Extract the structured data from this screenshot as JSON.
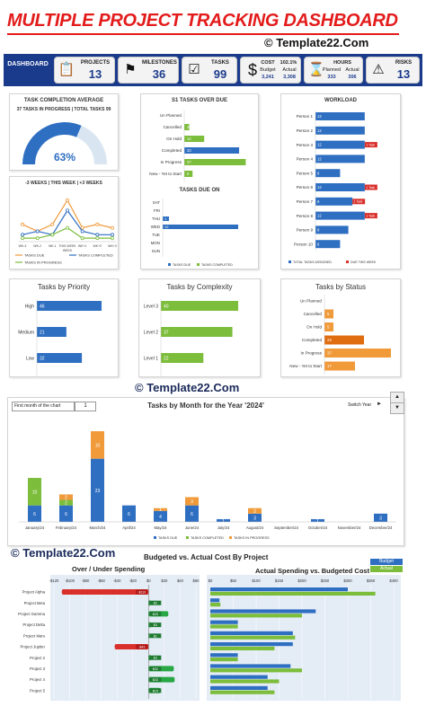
{
  "header": {
    "title": "MULTIPLE PROJECT TRACKING DASHBOARD",
    "copyright": "© Template22.Com"
  },
  "kpi": {
    "logo_small": "",
    "logo_label": "DASHBOARD",
    "projects": {
      "label": "PROJECTS",
      "value": "13"
    },
    "milestones": {
      "label": "MILESTONES",
      "value": "36"
    },
    "tasks": {
      "label": "TASKS",
      "value": "99"
    },
    "cost": {
      "label": "COST",
      "percent": "102.1%",
      "budget_label": "Budget",
      "actual_label": "Actual",
      "budget": "3,241",
      "actual": "3,308"
    },
    "hours": {
      "label": "HOURS",
      "planned_label": "Planned",
      "actual_label": "Actual",
      "planned": "333",
      "actual": "306"
    },
    "risks": {
      "label": "RISKS",
      "value": "13"
    }
  },
  "copyright_mid": "© Template22.Com",
  "copyright_low": "© Template22.Com",
  "colors": {
    "blue": "#2f6fc2",
    "green": "#7cbd3b",
    "orange": "#f09a3a",
    "red": "#d9302c",
    "navy": "#1a3a8c"
  },
  "chart_data": [
    {
      "id": "completion",
      "type": "gauge",
      "title": "TASK COMPLETION AVERAGE",
      "subtitle": "37 TASKS IN PROGRESS | TOTAL TASKS 99",
      "value_label": "63%",
      "value": 0.63
    },
    {
      "id": "weeks",
      "type": "line",
      "title": "-3 WEEKS | THIS WEEK | +3 WEEKS",
      "categories": [
        "WK-3",
        "WK-2",
        "WK-1",
        "THIS WEEK",
        "WK+1",
        "WK+2",
        "WK+3"
      ],
      "xlabel_center": "WEEK",
      "series": [
        {
          "name": "TASKS DUE",
          "values": [
            5,
            3,
            5,
            12,
            4,
            5,
            4
          ]
        },
        {
          "name": "TASKS COMPLETED",
          "values": [
            2,
            3,
            2,
            9,
            3,
            2,
            2
          ]
        },
        {
          "name": "TASKS IN PROGRESS",
          "values": [
            1,
            1,
            2,
            4,
            1,
            1,
            1
          ]
        }
      ]
    },
    {
      "id": "status_overdue",
      "type": "bar",
      "title": "S1 TASKS OVER DUE",
      "categories": [
        "Un Planned",
        "Cancelled",
        "On Hold",
        "Completed",
        "In Progress",
        "New - Yet to Start"
      ],
      "series": [
        {
          "name": "Tasks",
          "values": [
            0,
            3,
            12,
            33,
            37,
            5
          ]
        }
      ]
    },
    {
      "id": "due_on",
      "type": "bar",
      "title": "TASKS DUE ON",
      "categories": [
        "SAT",
        "FRI",
        "THU",
        "WED",
        "TUE",
        "MON",
        "SUN"
      ],
      "series": [
        {
          "name": "TASKS DUE",
          "values": [
            0,
            0,
            1,
            12,
            0,
            0,
            0
          ]
        },
        {
          "name": "TASKS COMPLETED",
          "values": [
            0,
            0,
            0,
            0,
            0,
            0,
            0
          ]
        }
      ]
    },
    {
      "id": "workload",
      "type": "bar",
      "title": "WORKLOAD",
      "categories": [
        "Person 1",
        "Person 2",
        "Person 3",
        "Person 4",
        "Person 5",
        "Person 6",
        "Person 7",
        "Person 8",
        "Person 9",
        "Person 10"
      ],
      "series": [
        {
          "name": "TOTAL TASKS ASSIGNED",
          "values": [
            12,
            12,
            12,
            12,
            6,
            12,
            9,
            12,
            8,
            6
          ]
        },
        {
          "name": "DUE THIS WEEK",
          "values": [
            0,
            0,
            1,
            0,
            0,
            1,
            1,
            1,
            0,
            0
          ]
        }
      ],
      "bar_labels": [
        [
          "12",
          ""
        ],
        [
          "12",
          ""
        ],
        [
          "12",
          "1 Task"
        ],
        [
          "12",
          ""
        ],
        [
          "6",
          ""
        ],
        [
          "12",
          "1 Task"
        ],
        [
          "9",
          "1 Task"
        ],
        [
          "12",
          "1 Task"
        ],
        [
          "8",
          ""
        ],
        [
          "6",
          ""
        ]
      ]
    },
    {
      "id": "priority",
      "type": "bar",
      "title": "Tasks by Priority",
      "categories": [
        "High",
        "Medium",
        "Low"
      ],
      "values": [
        46,
        21,
        32
      ]
    },
    {
      "id": "complexity",
      "type": "bar",
      "title": "Tasks by Complexity",
      "categories": [
        "Level 3",
        "Level 2",
        "Level 1"
      ],
      "values": [
        40,
        37,
        22
      ]
    },
    {
      "id": "status",
      "type": "bar",
      "title": "Tasks by Status",
      "categories": [
        "Un Planned",
        "Cancelled",
        "On Hold",
        "Completed",
        "In Progress",
        "New - Yet to Start"
      ],
      "values": [
        0,
        5,
        5,
        22,
        37,
        17
      ]
    },
    {
      "id": "monthly",
      "type": "bar",
      "title": "Tasks by Month for the Year '2024'",
      "first_month_label": "First month of the chart",
      "first_month_value": "1",
      "switch_label": "Switch Year",
      "categories": [
        "January/24",
        "February/24",
        "March/24",
        "April/24",
        "May/24",
        "June/24",
        "July/24",
        "August/24",
        "September/24",
        "October/24",
        "November/24",
        "December/24"
      ],
      "series": [
        {
          "name": "TASKS DUE",
          "values": [
            6,
            6,
            23,
            6,
            4,
            6,
            1,
            3,
            0,
            1,
            0,
            3
          ]
        },
        {
          "name": "TASKS COMPLETED",
          "values": [
            10,
            2,
            0,
            0,
            0,
            0,
            0,
            0,
            0,
            0,
            0,
            0
          ]
        },
        {
          "name": "TASKS IN PROGRESS",
          "values": [
            0,
            2,
            10,
            0,
            1,
            3,
            0,
            2,
            0,
            0,
            0,
            0
          ]
        }
      ]
    },
    {
      "id": "spending",
      "type": "bar",
      "title": "Over / Under Spending",
      "suptitle": "Budgeted vs. Actual Cost By Project",
      "xticks": [
        "-$120",
        "-$100",
        "-$80",
        "-$60",
        "-$40",
        "-$20",
        "$0",
        "$20",
        "$40",
        "$60"
      ],
      "categories": [
        "Project Alpha",
        "Project Beta",
        "Project Gamma",
        "Project Delta",
        "Project Mars",
        "Project Jupiter",
        "Project 2",
        "Project 3",
        "Project 4",
        "Project 5"
      ],
      "values": [
        -110,
        2,
        25,
        3,
        1,
        -43,
        3,
        32,
        33,
        15
      ],
      "value_labels": [
        "-$110",
        "$2",
        "$25",
        "$3",
        "$1",
        "-$43",
        "$3",
        "$32",
        "$33",
        "$15"
      ]
    },
    {
      "id": "actual_vs_budget",
      "type": "bar",
      "title": "Actual Spending vs. Budgeted Cost",
      "xticks": [
        "$0",
        "$50",
        "$100",
        "$150",
        "$200",
        "$250",
        "$300",
        "$350",
        "$400"
      ],
      "categories": [
        "Project Alpha",
        "Project Beta",
        "Project Gamma",
        "Project Delta",
        "Project Mars",
        "Project Jupiter",
        "Project 2",
        "Project 3",
        "Project 4",
        "Project 5"
      ],
      "series": [
        {
          "name": "Budget",
          "values": [
            300,
            20,
            230,
            60,
            180,
            180,
            60,
            175,
            125,
            125
          ]
        },
        {
          "name": "Actual",
          "values": [
            360,
            22,
            200,
            60,
            185,
            140,
            60,
            200,
            150,
            140
          ]
        }
      ]
    }
  ]
}
